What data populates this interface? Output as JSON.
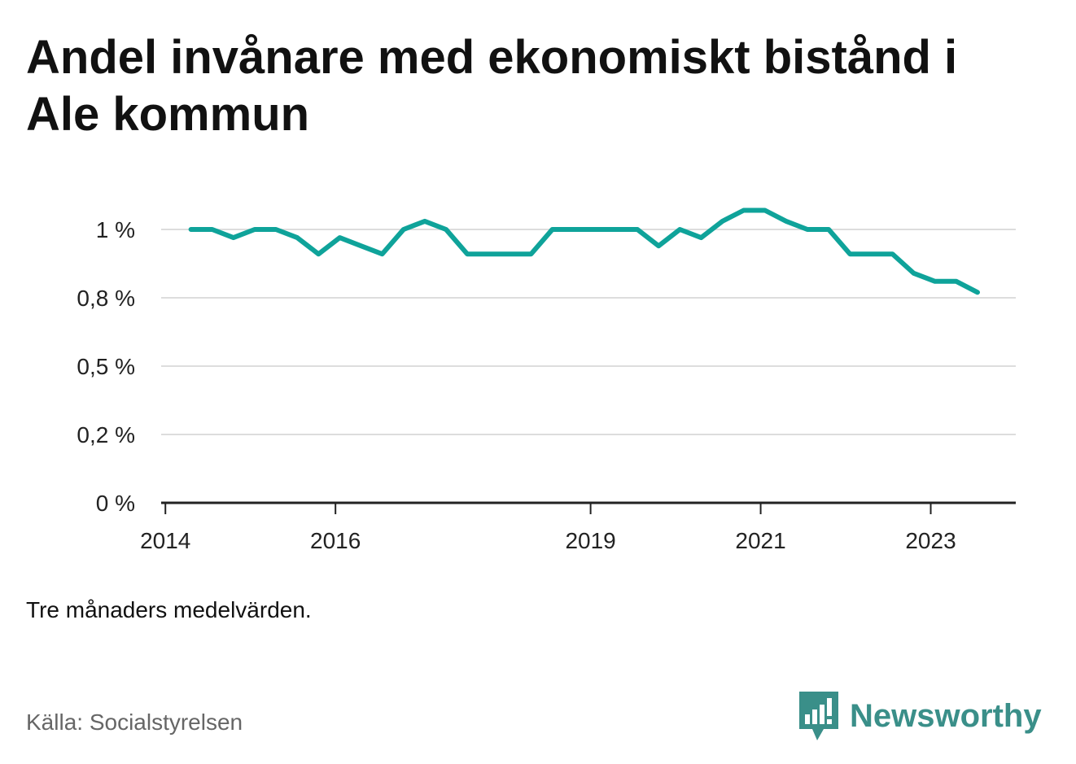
{
  "title": "Andel invånare med ekonomiskt bistånd i Ale kommun",
  "note": "Tre månaders medelvärden.",
  "source": "Källa: Socialstyrelsen",
  "brand": {
    "name": "Newsworthy",
    "icon": "newsworthy-logo-icon",
    "color": "#3a8f89"
  },
  "colors": {
    "line": "#0fa39a",
    "grid": "#dddddd",
    "axis": "#222222"
  },
  "chart_data": {
    "type": "line",
    "title": "Andel invånare med ekonomiskt bistånd i Ale kommun",
    "xlabel": "",
    "ylabel": "",
    "xlim": [
      2013.95,
      2024.0
    ],
    "ylim": [
      0,
      1.0
    ],
    "grid": "horizontal",
    "y_ticks": [
      {
        "value": 0,
        "label": "0 %"
      },
      {
        "value": 0.25,
        "label": "0,2 %"
      },
      {
        "value": 0.5,
        "label": "0,5 %"
      },
      {
        "value": 0.75,
        "label": "0,8 %"
      },
      {
        "value": 1.0,
        "label": "1 %"
      }
    ],
    "x_ticks": [
      {
        "value": 2014.0,
        "label": "2014"
      },
      {
        "value": 2016.0,
        "label": "2016"
      },
      {
        "value": 2019.0,
        "label": "2019"
      },
      {
        "value": 2021.0,
        "label": "2021"
      },
      {
        "value": 2023.0,
        "label": "2023"
      }
    ],
    "series": [
      {
        "x": [
          2014.3,
          2014.55,
          2014.8,
          2015.05,
          2015.3,
          2015.55,
          2015.8,
          2016.05,
          2016.3,
          2016.55,
          2016.8,
          2017.05,
          2017.3,
          2017.55,
          2017.8,
          2018.05,
          2018.3,
          2018.55,
          2018.8,
          2019.05,
          2019.3,
          2019.55,
          2019.8,
          2020.05,
          2020.3,
          2020.55,
          2020.8,
          2021.05,
          2021.3,
          2021.55,
          2021.8,
          2022.05,
          2022.3,
          2022.55,
          2022.8,
          2023.05,
          2023.3,
          2023.55
        ],
        "y": [
          1.0,
          1.0,
          0.97,
          1.0,
          1.0,
          0.97,
          0.91,
          0.97,
          0.94,
          0.91,
          1.0,
          1.03,
          1.0,
          0.91,
          0.91,
          0.91,
          0.91,
          1.0,
          1.0,
          1.0,
          1.0,
          1.0,
          0.94,
          1.0,
          0.97,
          1.03,
          1.07,
          1.07,
          1.03,
          1.0,
          1.0,
          0.91,
          0.91,
          0.91,
          0.84,
          0.81,
          0.81,
          0.77
        ]
      }
    ]
  }
}
